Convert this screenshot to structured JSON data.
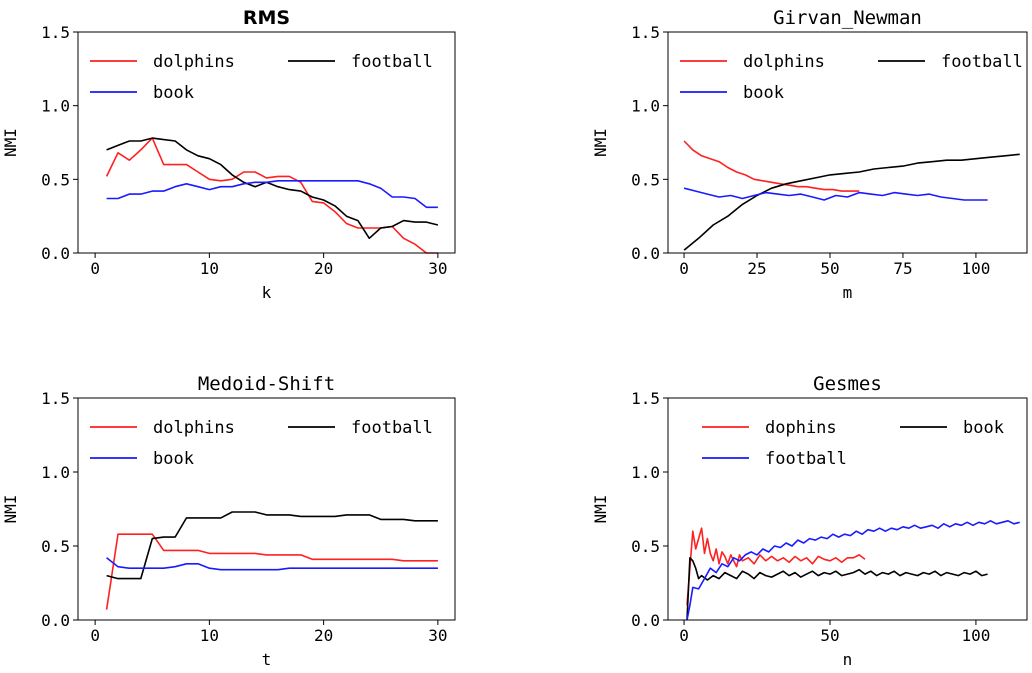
{
  "chart_data": [
    {
      "type": "line",
      "title": "RMS",
      "xlabel": "k",
      "ylabel": "NMI",
      "xlim": [
        -1.5,
        31.5
      ],
      "ylim": [
        0,
        1.5
      ],
      "xticks": [
        0,
        10,
        20,
        30
      ],
      "yticks": [
        0.0,
        0.5,
        1.0,
        1.5
      ],
      "ytick_labels": [
        "0.0",
        "0.5",
        "1.0",
        "1.5"
      ],
      "legend": "top, 2 columns",
      "series": [
        {
          "name": "dolphins",
          "color": "#ff2020",
          "x": [
            1,
            2,
            3,
            4,
            5,
            6,
            7,
            8,
            9,
            10,
            11,
            12,
            13,
            14,
            15,
            16,
            17,
            18,
            19,
            20,
            21,
            22,
            23,
            24,
            25,
            26,
            27,
            28,
            29,
            30
          ],
          "y": [
            0.52,
            0.68,
            0.63,
            0.7,
            0.78,
            0.6,
            0.6,
            0.6,
            0.55,
            0.5,
            0.49,
            0.5,
            0.55,
            0.55,
            0.51,
            0.52,
            0.52,
            0.48,
            0.35,
            0.34,
            0.28,
            0.2,
            0.17,
            0.17,
            0.17,
            0.18,
            0.1,
            0.06,
            0.0,
            0.0
          ]
        },
        {
          "name": "football",
          "color": "#000000",
          "x": [
            1,
            2,
            3,
            4,
            5,
            6,
            7,
            8,
            9,
            10,
            11,
            12,
            13,
            14,
            15,
            16,
            17,
            18,
            19,
            20,
            21,
            22,
            23,
            24,
            25,
            26,
            27,
            28,
            29,
            30
          ],
          "y": [
            0.7,
            0.73,
            0.76,
            0.76,
            0.78,
            0.77,
            0.76,
            0.7,
            0.66,
            0.64,
            0.6,
            0.53,
            0.48,
            0.45,
            0.48,
            0.45,
            0.43,
            0.42,
            0.38,
            0.36,
            0.32,
            0.25,
            0.22,
            0.1,
            0.17,
            0.18,
            0.22,
            0.21,
            0.21,
            0.19
          ]
        },
        {
          "name": "book",
          "color": "#1a1aff",
          "x": [
            1,
            2,
            3,
            4,
            5,
            6,
            7,
            8,
            9,
            10,
            11,
            12,
            13,
            14,
            15,
            16,
            17,
            18,
            19,
            20,
            21,
            22,
            23,
            24,
            25,
            26,
            27,
            28,
            29,
            30
          ],
          "y": [
            0.37,
            0.37,
            0.4,
            0.4,
            0.42,
            0.42,
            0.45,
            0.47,
            0.45,
            0.43,
            0.45,
            0.45,
            0.47,
            0.48,
            0.48,
            0.49,
            0.49,
            0.49,
            0.49,
            0.49,
            0.49,
            0.49,
            0.49,
            0.47,
            0.44,
            0.38,
            0.38,
            0.37,
            0.31,
            0.31
          ]
        }
      ]
    },
    {
      "type": "line",
      "title": "Girvan_Newman",
      "xlabel": "m",
      "ylabel": "NMI",
      "xlim": [
        -5.5,
        117.5
      ],
      "ylim": [
        0,
        1.5
      ],
      "xticks": [
        0,
        25,
        50,
        75,
        100
      ],
      "yticks": [
        0.0,
        0.5,
        1.0,
        1.5
      ],
      "ytick_labels": [
        "0.0",
        "0.5",
        "1.0",
        "1.5"
      ],
      "legend": "top, 2 columns",
      "series": [
        {
          "name": "dolphins",
          "color": "#ff2020",
          "x": [
            0,
            3,
            6,
            9,
            12,
            15,
            18,
            21,
            24,
            27,
            30,
            33,
            36,
            39,
            42,
            45,
            48,
            51,
            54,
            57,
            60
          ],
          "y": [
            0.76,
            0.7,
            0.66,
            0.64,
            0.62,
            0.58,
            0.55,
            0.53,
            0.5,
            0.49,
            0.48,
            0.47,
            0.46,
            0.45,
            0.45,
            0.44,
            0.43,
            0.43,
            0.42,
            0.42,
            0.42
          ]
        },
        {
          "name": "football",
          "color": "#000000",
          "x": [
            0,
            5,
            10,
            15,
            20,
            25,
            30,
            35,
            40,
            45,
            50,
            55,
            60,
            65,
            70,
            75,
            80,
            85,
            90,
            95,
            100,
            105,
            110,
            115
          ],
          "y": [
            0.02,
            0.1,
            0.19,
            0.25,
            0.33,
            0.39,
            0.44,
            0.47,
            0.49,
            0.51,
            0.53,
            0.54,
            0.55,
            0.57,
            0.58,
            0.59,
            0.61,
            0.62,
            0.63,
            0.63,
            0.64,
            0.65,
            0.66,
            0.67
          ]
        },
        {
          "name": "book",
          "color": "#1a1aff",
          "x": [
            0,
            4,
            8,
            12,
            16,
            20,
            24,
            28,
            32,
            36,
            40,
            44,
            48,
            52,
            56,
            60,
            64,
            68,
            72,
            76,
            80,
            84,
            88,
            92,
            96,
            100,
            104
          ],
          "y": [
            0.44,
            0.42,
            0.4,
            0.38,
            0.39,
            0.37,
            0.39,
            0.41,
            0.4,
            0.39,
            0.4,
            0.38,
            0.36,
            0.39,
            0.38,
            0.41,
            0.4,
            0.39,
            0.41,
            0.4,
            0.39,
            0.4,
            0.38,
            0.37,
            0.36,
            0.36,
            0.36
          ]
        }
      ]
    },
    {
      "type": "line",
      "title": "Medoid-Shift",
      "xlabel": "t",
      "ylabel": "NMI",
      "xlim": [
        -1.5,
        31.5
      ],
      "ylim": [
        0,
        1.5
      ],
      "xticks": [
        0,
        10,
        20,
        30
      ],
      "yticks": [
        0.0,
        0.5,
        1.0,
        1.5
      ],
      "ytick_labels": [
        "0.0",
        "0.5",
        "1.0",
        "1.5"
      ],
      "legend": "top, 2 columns",
      "series": [
        {
          "name": "dolphins",
          "color": "#ff2020",
          "x": [
            1,
            2,
            3,
            4,
            5,
            6,
            7,
            8,
            9,
            10,
            11,
            12,
            13,
            14,
            15,
            16,
            17,
            18,
            19,
            20,
            21,
            22,
            23,
            24,
            25,
            26,
            27,
            28,
            29,
            30
          ],
          "y": [
            0.07,
            0.58,
            0.58,
            0.58,
            0.58,
            0.47,
            0.47,
            0.47,
            0.47,
            0.45,
            0.45,
            0.45,
            0.45,
            0.45,
            0.44,
            0.44,
            0.44,
            0.44,
            0.41,
            0.41,
            0.41,
            0.41,
            0.41,
            0.41,
            0.41,
            0.41,
            0.4,
            0.4,
            0.4,
            0.4
          ]
        },
        {
          "name": "football",
          "color": "#000000",
          "x": [
            1,
            2,
            3,
            4,
            5,
            6,
            7,
            8,
            9,
            10,
            11,
            12,
            13,
            14,
            15,
            16,
            17,
            18,
            19,
            20,
            21,
            22,
            23,
            24,
            25,
            26,
            27,
            28,
            29,
            30
          ],
          "y": [
            0.3,
            0.28,
            0.28,
            0.28,
            0.55,
            0.56,
            0.56,
            0.69,
            0.69,
            0.69,
            0.69,
            0.73,
            0.73,
            0.73,
            0.71,
            0.71,
            0.71,
            0.7,
            0.7,
            0.7,
            0.7,
            0.71,
            0.71,
            0.71,
            0.68,
            0.68,
            0.68,
            0.67,
            0.67,
            0.67
          ]
        },
        {
          "name": "book",
          "color": "#1a1aff",
          "x": [
            1,
            2,
            3,
            4,
            5,
            6,
            7,
            8,
            9,
            10,
            11,
            12,
            13,
            14,
            15,
            16,
            17,
            18,
            19,
            20,
            21,
            22,
            23,
            24,
            25,
            26,
            27,
            28,
            29,
            30
          ],
          "y": [
            0.42,
            0.36,
            0.35,
            0.35,
            0.35,
            0.35,
            0.36,
            0.38,
            0.38,
            0.35,
            0.34,
            0.34,
            0.34,
            0.34,
            0.34,
            0.34,
            0.35,
            0.35,
            0.35,
            0.35,
            0.35,
            0.35,
            0.35,
            0.35,
            0.35,
            0.35,
            0.35,
            0.35,
            0.35,
            0.35
          ]
        }
      ]
    },
    {
      "type": "line",
      "title": "Gesmes",
      "xlabel": "n",
      "ylabel": "NMI",
      "xlim": [
        -5.5,
        117.5
      ],
      "ylim": [
        0,
        1.5
      ],
      "xticks": [
        0,
        50,
        100
      ],
      "yticks": [
        0.0,
        0.5,
        1.0,
        1.5
      ],
      "ytick_labels": [
        "0.0",
        "0.5",
        "1.0",
        "1.5"
      ],
      "legend": "top, 2 columns",
      "series": [
        {
          "name": "dophins",
          "color": "#ff2020",
          "x": [
            1,
            2,
            3,
            4,
            5,
            6,
            7,
            8,
            9,
            10,
            11,
            12,
            13,
            14,
            15,
            16,
            17,
            18,
            19,
            20,
            22,
            24,
            26,
            28,
            30,
            32,
            34,
            36,
            38,
            40,
            42,
            44,
            46,
            48,
            50,
            52,
            54,
            56,
            58,
            60,
            62
          ],
          "y": [
            0.1,
            0.35,
            0.6,
            0.48,
            0.55,
            0.62,
            0.45,
            0.55,
            0.45,
            0.4,
            0.48,
            0.38,
            0.46,
            0.43,
            0.38,
            0.44,
            0.4,
            0.36,
            0.44,
            0.4,
            0.42,
            0.38,
            0.44,
            0.4,
            0.43,
            0.4,
            0.42,
            0.39,
            0.43,
            0.4,
            0.42,
            0.38,
            0.43,
            0.41,
            0.4,
            0.42,
            0.39,
            0.42,
            0.42,
            0.44,
            0.41
          ]
        },
        {
          "name": "book",
          "color": "#000000",
          "x": [
            1,
            2,
            3,
            4,
            5,
            6,
            8,
            10,
            12,
            14,
            16,
            18,
            20,
            22,
            24,
            26,
            28,
            30,
            32,
            34,
            36,
            38,
            40,
            42,
            44,
            46,
            48,
            50,
            52,
            54,
            56,
            58,
            60,
            62,
            64,
            66,
            68,
            70,
            72,
            74,
            76,
            78,
            80,
            82,
            84,
            86,
            88,
            90,
            92,
            94,
            96,
            98,
            100,
            102,
            104
          ],
          "y": [
            0.0,
            0.42,
            0.4,
            0.35,
            0.28,
            0.3,
            0.27,
            0.3,
            0.28,
            0.32,
            0.3,
            0.28,
            0.33,
            0.31,
            0.28,
            0.32,
            0.3,
            0.29,
            0.31,
            0.33,
            0.3,
            0.32,
            0.29,
            0.31,
            0.33,
            0.3,
            0.32,
            0.31,
            0.33,
            0.3,
            0.31,
            0.32,
            0.34,
            0.31,
            0.33,
            0.3,
            0.32,
            0.31,
            0.33,
            0.3,
            0.32,
            0.31,
            0.3,
            0.32,
            0.31,
            0.33,
            0.3,
            0.32,
            0.31,
            0.3,
            0.32,
            0.31,
            0.33,
            0.3,
            0.31
          ]
        },
        {
          "name": "football",
          "color": "#1a1aff",
          "x": [
            1,
            2,
            3,
            5,
            7,
            9,
            11,
            13,
            15,
            17,
            19,
            21,
            23,
            25,
            27,
            29,
            31,
            33,
            35,
            37,
            39,
            41,
            43,
            45,
            47,
            49,
            51,
            53,
            55,
            57,
            59,
            61,
            63,
            65,
            67,
            69,
            71,
            73,
            75,
            77,
            79,
            81,
            83,
            85,
            87,
            89,
            91,
            93,
            95,
            97,
            99,
            101,
            103,
            105,
            107,
            109,
            111,
            113,
            115
          ],
          "y": [
            0.0,
            0.1,
            0.22,
            0.21,
            0.28,
            0.35,
            0.32,
            0.38,
            0.36,
            0.42,
            0.4,
            0.44,
            0.46,
            0.44,
            0.48,
            0.46,
            0.5,
            0.49,
            0.52,
            0.5,
            0.54,
            0.52,
            0.55,
            0.54,
            0.56,
            0.55,
            0.58,
            0.56,
            0.58,
            0.57,
            0.6,
            0.58,
            0.61,
            0.6,
            0.62,
            0.6,
            0.62,
            0.61,
            0.63,
            0.62,
            0.64,
            0.62,
            0.63,
            0.64,
            0.62,
            0.65,
            0.63,
            0.65,
            0.64,
            0.66,
            0.64,
            0.66,
            0.65,
            0.67,
            0.65,
            0.66,
            0.67,
            0.65,
            0.66
          ]
        }
      ]
    }
  ]
}
